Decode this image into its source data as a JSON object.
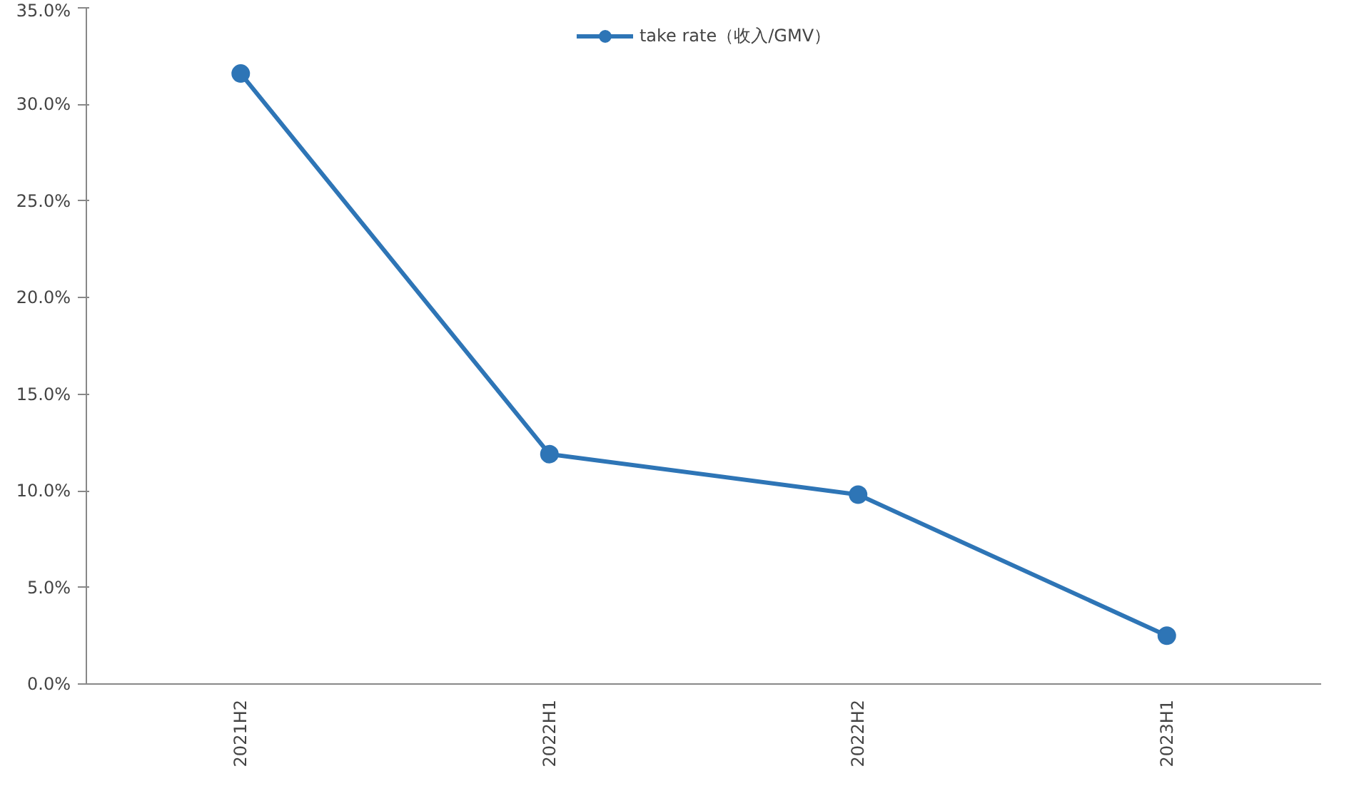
{
  "chart_data": {
    "type": "line",
    "categories": [
      "2021H2",
      "2022H1",
      "2022H2",
      "2023H1"
    ],
    "series": [
      {
        "name": "take rate（收入/GMV）",
        "color": "#2e75b6",
        "values": [
          31.6,
          11.9,
          9.8,
          2.5
        ]
      }
    ],
    "ylim": [
      0,
      35
    ],
    "yticks": [
      {
        "value": 0,
        "label": "0.0%"
      },
      {
        "value": 5,
        "label": "5.0%"
      },
      {
        "value": 10,
        "label": "10.0%"
      },
      {
        "value": 15,
        "label": "15.0%"
      },
      {
        "value": 20,
        "label": "20.0%"
      },
      {
        "value": 25,
        "label": "25.0%"
      },
      {
        "value": 30,
        "label": "30.0%"
      },
      {
        "value": 35,
        "label": "35.0%"
      }
    ],
    "grid": false,
    "legend": "top",
    "marker": "circle",
    "line_style": "solid"
  }
}
